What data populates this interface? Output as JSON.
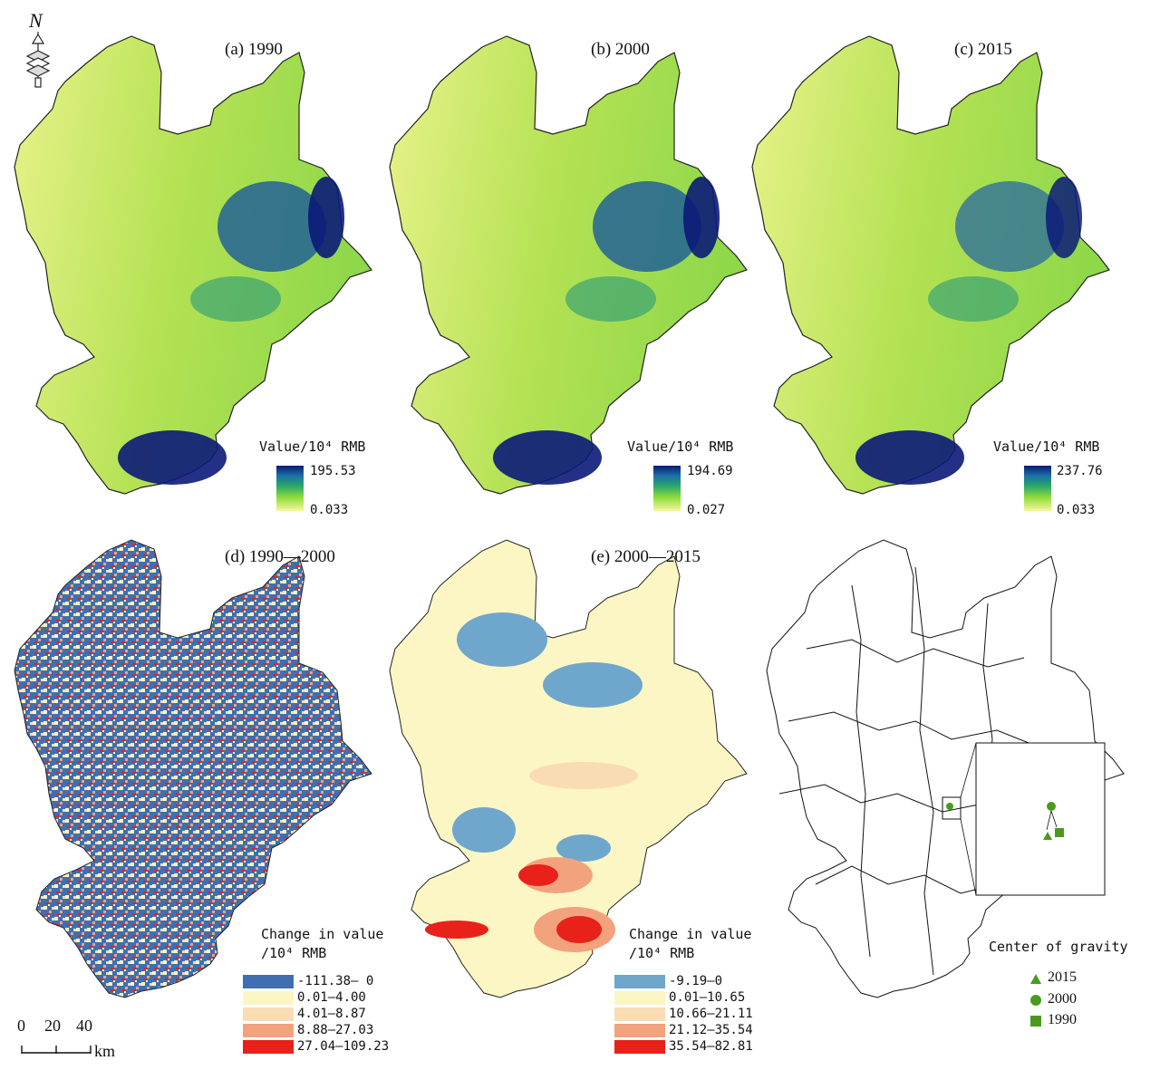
{
  "north_label": "N",
  "panels": {
    "a": {
      "title": "(a) 1990",
      "legend_title": "Value/10⁴ RMB",
      "max": "195.53",
      "min": "0.033"
    },
    "b": {
      "title": "(b) 2000",
      "legend_title": "Value/10⁴ RMB",
      "max": "194.69",
      "min": "0.027"
    },
    "c": {
      "title": "(c) 2015",
      "legend_title": "Value/10⁴ RMB",
      "max": "237.76",
      "min": "0.033"
    },
    "d": {
      "title": "(d) 1990—2000",
      "legend_title_1": "Change in value",
      "legend_title_2": "/10⁴ RMB",
      "classes": [
        {
          "label": "-111.38— 0",
          "color": "#3f6fb0"
        },
        {
          "label": "0.01—4.00",
          "color": "#fbf6c4"
        },
        {
          "label": "4.01—8.87",
          "color": "#f9dcb4"
        },
        {
          "label": "8.88—27.03",
          "color": "#f3a27e"
        },
        {
          "label": "27.04—109.23",
          "color": "#e8211b"
        }
      ]
    },
    "e": {
      "title": "(e) 2000—2015",
      "legend_title_1": "Change in value",
      "legend_title_2": "/10⁴ RMB",
      "classes": [
        {
          "label": "-9.19—0",
          "color": "#6fa6cc"
        },
        {
          "label": "0.01—10.65",
          "color": "#fbf6c4"
        },
        {
          "label": "10.66—21.11",
          "color": "#f9dcb4"
        },
        {
          "label": "21.12—35.54",
          "color": "#f3a27e"
        },
        {
          "label": "35.54—82.81",
          "color": "#e8211b"
        }
      ]
    },
    "f": {
      "legend_title": "Center of gravity",
      "items": [
        {
          "label": "2015",
          "symbol": "triangle"
        },
        {
          "label": "2000",
          "symbol": "circle"
        },
        {
          "label": "1990",
          "symbol": "square"
        }
      ],
      "symbol_color": "#4a9a1f"
    }
  },
  "scale_bar": {
    "labels": [
      "0",
      "20",
      "40"
    ],
    "unit": "km"
  }
}
